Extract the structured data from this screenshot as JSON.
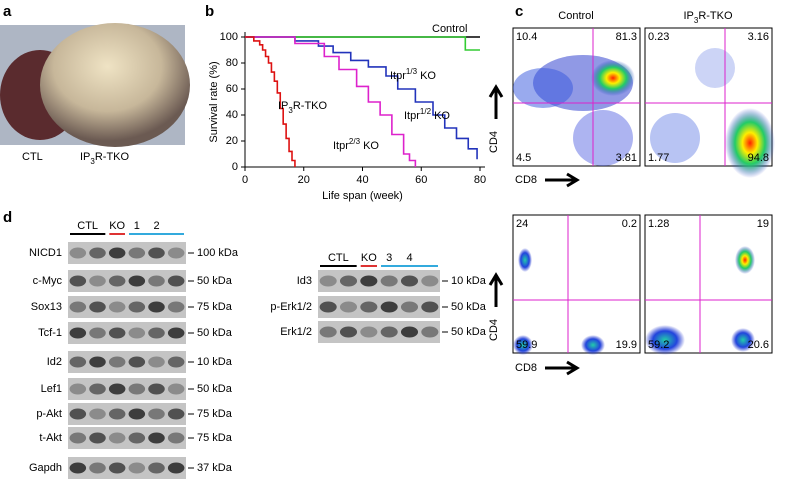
{
  "panel_labels": [
    "a",
    "b",
    "c",
    "d"
  ],
  "panel_a": {
    "labels": [
      {
        "text": "CTL"
      },
      {
        "text": "IP",
        "sub": "3",
        "tail": "R-TKO"
      }
    ]
  },
  "chart_data": {
    "type": "line",
    "xlabel": "Life span (week)",
    "ylabel": "Survival rate (%)",
    "xlim": [
      0,
      80
    ],
    "ylim": [
      0,
      100
    ],
    "xticks": [
      0,
      20,
      40,
      60,
      80
    ],
    "yticks": [
      0,
      20,
      40,
      60,
      80,
      100
    ],
    "series": [
      {
        "label": {
          "text": "Control"
        },
        "color": "#000000",
        "x": [
          0,
          80
        ],
        "values": [
          100,
          100
        ]
      },
      {
        "label": {
          "text": "Itpr",
          "sup": "1/3",
          "tail": " KO"
        },
        "color": "#33cc33",
        "x": [
          0,
          75,
          75,
          80
        ],
        "values": [
          100,
          100,
          90,
          90
        ]
      },
      {
        "label": {
          "text": "Itpr",
          "sup": "1/2",
          "tail": " KO"
        },
        "color": "#2233bb",
        "x": [
          0,
          17,
          17,
          25,
          25,
          30,
          30,
          36,
          36,
          42,
          42,
          48,
          48,
          52,
          52,
          58,
          58,
          64,
          64,
          68,
          68,
          72,
          72,
          76,
          76,
          79,
          79
        ],
        "values": [
          100,
          100,
          97,
          97,
          93,
          93,
          88,
          88,
          82,
          82,
          77,
          77,
          70,
          70,
          60,
          60,
          50,
          50,
          40,
          40,
          30,
          30,
          22,
          22,
          14,
          14,
          6
        ]
      },
      {
        "label": {
          "text": "Itpr",
          "sup": "2/3",
          "tail": " KO"
        },
        "color": "#dd22cc",
        "x": [
          0,
          17,
          17,
          27,
          27,
          32,
          32,
          38,
          38,
          42,
          42,
          46,
          46,
          50,
          50,
          54,
          54,
          56,
          56,
          58,
          58
        ],
        "values": [
          100,
          100,
          95,
          95,
          85,
          85,
          75,
          75,
          62,
          62,
          50,
          50,
          40,
          40,
          25,
          25,
          10,
          10,
          5,
          5,
          0
        ]
      },
      {
        "label": {
          "text": "IP",
          "sub": "3",
          "tail": "R-TKO"
        },
        "color": "#dd1111",
        "x": [
          0,
          3,
          3,
          5,
          5,
          6,
          6,
          7,
          7,
          8,
          8,
          9,
          9,
          10,
          10,
          11,
          11,
          12,
          12,
          13,
          13,
          14,
          14,
          15,
          15,
          16,
          16,
          17,
          17
        ],
        "values": [
          100,
          100,
          97,
          97,
          94,
          94,
          90,
          90,
          85,
          85,
          80,
          80,
          73,
          73,
          66,
          66,
          57,
          57,
          45,
          45,
          33,
          33,
          22,
          22,
          12,
          12,
          5,
          5,
          0
        ]
      }
    ]
  },
  "panel_c": {
    "headers": [
      {
        "text": "Control"
      },
      {
        "text": "IP",
        "sub": "3",
        "tail": "R-TKO"
      }
    ],
    "y_axis": "CD4",
    "x_axis": "CD8",
    "plots": [
      [
        "10.4",
        "81.3",
        "4.5",
        "3.81"
      ],
      [
        "0.23",
        "3.16",
        "1.77",
        "94.8"
      ],
      [
        "24",
        "0.2",
        "59.9",
        "19.9"
      ],
      [
        "1.28",
        "19",
        "59.2",
        "20.6"
      ]
    ]
  },
  "panel_d": {
    "left": {
      "groups": [
        "CTL",
        "KO",
        "1",
        "2"
      ],
      "rows": [
        [
          "NICD1",
          "100 kDa"
        ],
        [
          "c-Myc",
          "50 kDa"
        ],
        [
          "Sox13",
          "75 kDa"
        ],
        [
          "Tcf-1",
          "50 kDa"
        ],
        [
          "Id2",
          "10 kDa"
        ],
        [
          "Lef1",
          "50 kDa"
        ],
        [
          "p-Akt",
          "75 kDa"
        ],
        [
          "t-Akt",
          "75 kDa"
        ],
        [
          "Gapdh",
          "37 kDa"
        ]
      ]
    },
    "right": {
      "groups": [
        "CTL",
        "KO",
        "3",
        "4"
      ],
      "rows": [
        [
          "Id3",
          "10 kDa"
        ],
        [
          "p-Erk1/2",
          "50 kDa"
        ],
        [
          "Erk1/2",
          "50 kDa"
        ]
      ]
    }
  }
}
